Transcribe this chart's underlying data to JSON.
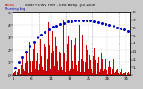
{
  "title": "Solar PV/Inv. Perf. - East Array - Jul 2008",
  "bg_color": "#c8c8c8",
  "plot_bg": "#ffffff",
  "bar_color": "#cc0000",
  "avg_color": "#0000cc",
  "grid_color": "#aaaaaa",
  "num_days": 31,
  "intervals_per_day": 288,
  "ylim_left": [
    0,
    5
  ],
  "ylim_right": [
    0,
    8
  ],
  "yticks_left": [
    0,
    1,
    2,
    3,
    4,
    5
  ],
  "ytick_labels_right": [
    "",
    "1.",
    "2.",
    "D:",
    "4.",
    "5.",
    "6.",
    "7.",
    "8."
  ],
  "legend_actual": "Actual",
  "legend_avg": "Running Avg"
}
